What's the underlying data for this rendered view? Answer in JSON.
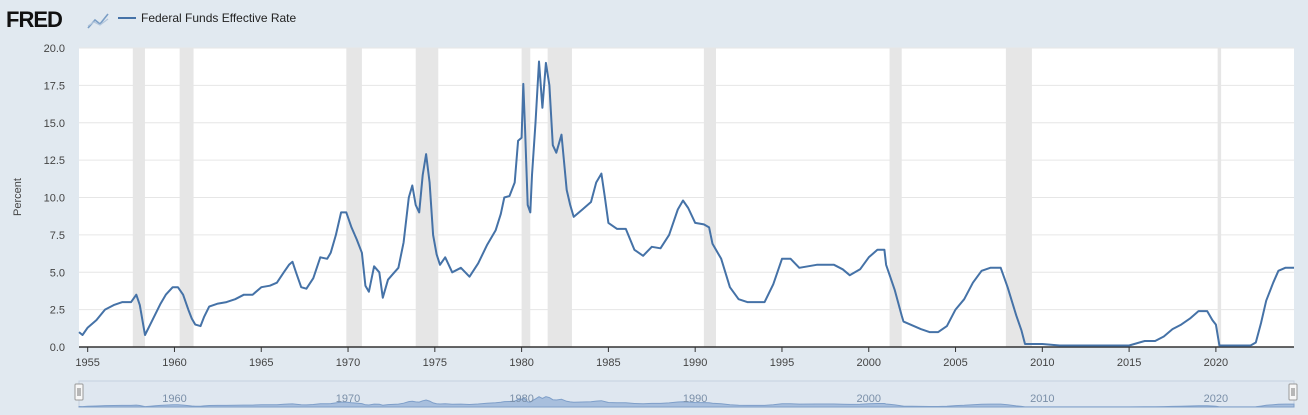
{
  "header": {
    "logo_text": "FRED",
    "logo_icon": "line-chart-icon",
    "legend_label": "Federal Funds Effective Rate",
    "series_color": "#4572a7"
  },
  "chart_data": {
    "type": "line",
    "title": "",
    "xlabel": "",
    "ylabel": "Percent",
    "xlim": [
      1954.5,
      2024.5
    ],
    "ylim": [
      0,
      20
    ],
    "grid": true,
    "legend": "top-left",
    "x_ticks": [
      "1955",
      "1960",
      "1965",
      "1970",
      "1975",
      "1980",
      "1985",
      "1990",
      "1995",
      "2000",
      "2005",
      "2010",
      "2015",
      "2020"
    ],
    "y_ticks": [
      "0.0",
      "2.5",
      "5.0",
      "7.5",
      "10.0",
      "12.5",
      "15.0",
      "17.5",
      "20.0"
    ],
    "recessions": [
      [
        1957.6,
        1958.3
      ],
      [
        1960.3,
        1961.1
      ],
      [
        1969.9,
        1970.8
      ],
      [
        1973.9,
        1975.2
      ],
      [
        1980.0,
        1980.5
      ],
      [
        1981.5,
        1982.9
      ],
      [
        1990.5,
        1991.2
      ],
      [
        2001.2,
        2001.9
      ],
      [
        2007.9,
        2009.4
      ],
      [
        2020.1,
        2020.3
      ]
    ],
    "series": [
      {
        "name": "Federal Funds Effective Rate",
        "x": [
          1954.5,
          1954.7,
          1955.0,
          1955.5,
          1956.0,
          1956.5,
          1957.0,
          1957.5,
          1957.8,
          1958.0,
          1958.3,
          1958.6,
          1958.9,
          1959.2,
          1959.5,
          1959.9,
          1960.2,
          1960.5,
          1960.8,
          1961.0,
          1961.2,
          1961.5,
          1961.7,
          1962.0,
          1962.5,
          1963.0,
          1963.5,
          1964.0,
          1964.5,
          1965.0,
          1965.5,
          1965.9,
          1966.3,
          1966.6,
          1966.8,
          1967.0,
          1967.3,
          1967.6,
          1968.0,
          1968.4,
          1968.8,
          1969.0,
          1969.3,
          1969.6,
          1969.9,
          1970.2,
          1970.5,
          1970.8,
          1971.0,
          1971.2,
          1971.5,
          1971.8,
          1972.0,
          1972.3,
          1972.6,
          1972.9,
          1973.2,
          1973.5,
          1973.7,
          1973.9,
          1974.1,
          1974.3,
          1974.5,
          1974.7,
          1974.9,
          1975.1,
          1975.3,
          1975.6,
          1976.0,
          1976.5,
          1977.0,
          1977.5,
          1978.0,
          1978.5,
          1978.8,
          1979.0,
          1979.3,
          1979.6,
          1979.8,
          1980.0,
          1980.1,
          1980.2,
          1980.35,
          1980.5,
          1980.6,
          1980.8,
          1981.0,
          1981.2,
          1981.4,
          1981.6,
          1981.8,
          1982.0,
          1982.3,
          1982.6,
          1982.8,
          1983.0,
          1983.5,
          1984.0,
          1984.3,
          1984.6,
          1984.8,
          1985.0,
          1985.5,
          1986.0,
          1986.5,
          1987.0,
          1987.5,
          1988.0,
          1988.5,
          1989.0,
          1989.3,
          1989.6,
          1990.0,
          1990.5,
          1990.8,
          1991.0,
          1991.5,
          1992.0,
          1992.5,
          1993.0,
          1994.0,
          1994.5,
          1995.0,
          1995.5,
          1996.0,
          1997.0,
          1998.0,
          1998.5,
          1998.9,
          1999.5,
          2000.0,
          2000.5,
          2000.9,
          2001.0,
          2001.5,
          2001.9,
          2002.0,
          2003.0,
          2003.5,
          2004.0,
          2004.5,
          2005.0,
          2005.5,
          2006.0,
          2006.5,
          2007.0,
          2007.6,
          2008.0,
          2008.5,
          2008.8,
          2009.0,
          2010.0,
          2011.0,
          2012.0,
          2013.0,
          2014.0,
          2015.0,
          2015.9,
          2016.5,
          2017.0,
          2017.5,
          2018.0,
          2018.5,
          2019.0,
          2019.5,
          2019.8,
          2020.0,
          2020.2,
          2020.5,
          2021.0,
          2022.0,
          2022.3,
          2022.6,
          2022.9,
          2023.3,
          2023.6,
          2024.0,
          2024.5
        ],
        "values": [
          1.0,
          0.8,
          1.3,
          1.8,
          2.5,
          2.8,
          3.0,
          3.0,
          3.5,
          2.8,
          0.8,
          1.5,
          2.2,
          2.9,
          3.5,
          4.0,
          4.0,
          3.5,
          2.5,
          1.9,
          1.5,
          1.4,
          2.0,
          2.7,
          2.9,
          3.0,
          3.2,
          3.5,
          3.5,
          4.0,
          4.1,
          4.3,
          5.0,
          5.5,
          5.7,
          5.0,
          4.0,
          3.9,
          4.6,
          6.0,
          5.9,
          6.3,
          7.5,
          9.0,
          9.0,
          8.0,
          7.2,
          6.3,
          4.1,
          3.7,
          5.4,
          5.0,
          3.3,
          4.5,
          4.9,
          5.3,
          7.0,
          10.0,
          10.8,
          9.5,
          9.0,
          11.5,
          12.9,
          11.0,
          7.5,
          6.2,
          5.5,
          6.0,
          5.0,
          5.3,
          4.7,
          5.6,
          6.8,
          7.8,
          8.9,
          10.0,
          10.1,
          11.0,
          13.8,
          14.0,
          17.6,
          14.5,
          9.5,
          9.0,
          11.5,
          15.0,
          19.1,
          16.0,
          19.0,
          17.5,
          13.5,
          13.0,
          14.2,
          10.5,
          9.5,
          8.7,
          9.2,
          9.7,
          11.0,
          11.6,
          10.0,
          8.3,
          7.9,
          7.9,
          6.5,
          6.1,
          6.7,
          6.6,
          7.5,
          9.2,
          9.8,
          9.3,
          8.3,
          8.2,
          8.0,
          6.9,
          5.9,
          4.0,
          3.2,
          3.0,
          3.0,
          4.2,
          5.9,
          5.9,
          5.3,
          5.5,
          5.5,
          5.2,
          4.8,
          5.2,
          6.0,
          6.5,
          6.5,
          5.5,
          3.8,
          2.1,
          1.7,
          1.2,
          1.0,
          1.0,
          1.4,
          2.5,
          3.2,
          4.3,
          5.1,
          5.3,
          5.3,
          4.0,
          2.1,
          1.1,
          0.2,
          0.2,
          0.1,
          0.1,
          0.1,
          0.1,
          0.1,
          0.4,
          0.4,
          0.7,
          1.2,
          1.5,
          1.9,
          2.4,
          2.4,
          1.8,
          1.5,
          0.1,
          0.1,
          0.1,
          0.1,
          0.3,
          1.6,
          3.1,
          4.3,
          5.1,
          5.3,
          5.3
        ]
      }
    ],
    "navigator_ticks": [
      "1960",
      "1970",
      "1980",
      "1990",
      "2000",
      "2010",
      "2020"
    ]
  }
}
